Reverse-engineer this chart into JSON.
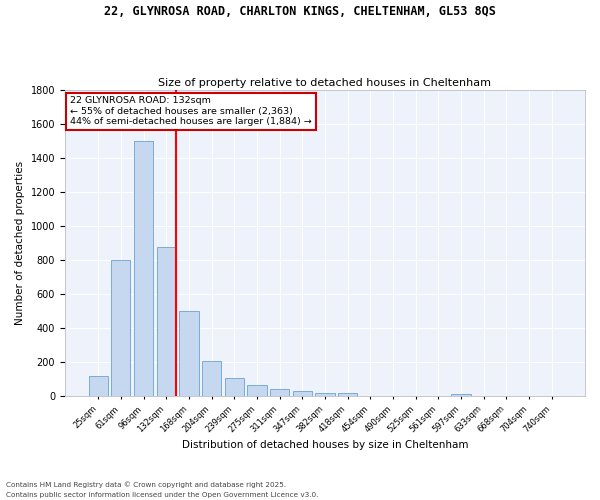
{
  "title1": "22, GLYNROSA ROAD, CHARLTON KINGS, CHELTENHAM, GL53 8QS",
  "title2": "Size of property relative to detached houses in Cheltenham",
  "xlabel": "Distribution of detached houses by size in Cheltenham",
  "ylabel": "Number of detached properties",
  "categories": [
    "25sqm",
    "61sqm",
    "96sqm",
    "132sqm",
    "168sqm",
    "204sqm",
    "239sqm",
    "275sqm",
    "311sqm",
    "347sqm",
    "382sqm",
    "418sqm",
    "454sqm",
    "490sqm",
    "525sqm",
    "561sqm",
    "597sqm",
    "633sqm",
    "668sqm",
    "704sqm",
    "740sqm"
  ],
  "values": [
    120,
    800,
    1500,
    880,
    500,
    210,
    110,
    68,
    45,
    32,
    22,
    18,
    0,
    0,
    0,
    0,
    12,
    0,
    0,
    0,
    0
  ],
  "bar_color": "#c5d8f0",
  "bar_edge_color": "#7aadd4",
  "red_line_index": 3,
  "annotation_line1": "22 GLYNROSA ROAD: 132sqm",
  "annotation_line2": "← 55% of detached houses are smaller (2,363)",
  "annotation_line3": "44% of semi-detached houses are larger (1,884) →",
  "annotation_box_color": "#ffffff",
  "annotation_box_edge": "#cc0000",
  "footer1": "Contains HM Land Registry data © Crown copyright and database right 2025.",
  "footer2": "Contains public sector information licensed under the Open Government Licence v3.0.",
  "background_color": "#eef2fb",
  "ylim": [
    0,
    1800
  ],
  "yticks": [
    0,
    200,
    400,
    600,
    800,
    1000,
    1200,
    1400,
    1600,
    1800
  ]
}
